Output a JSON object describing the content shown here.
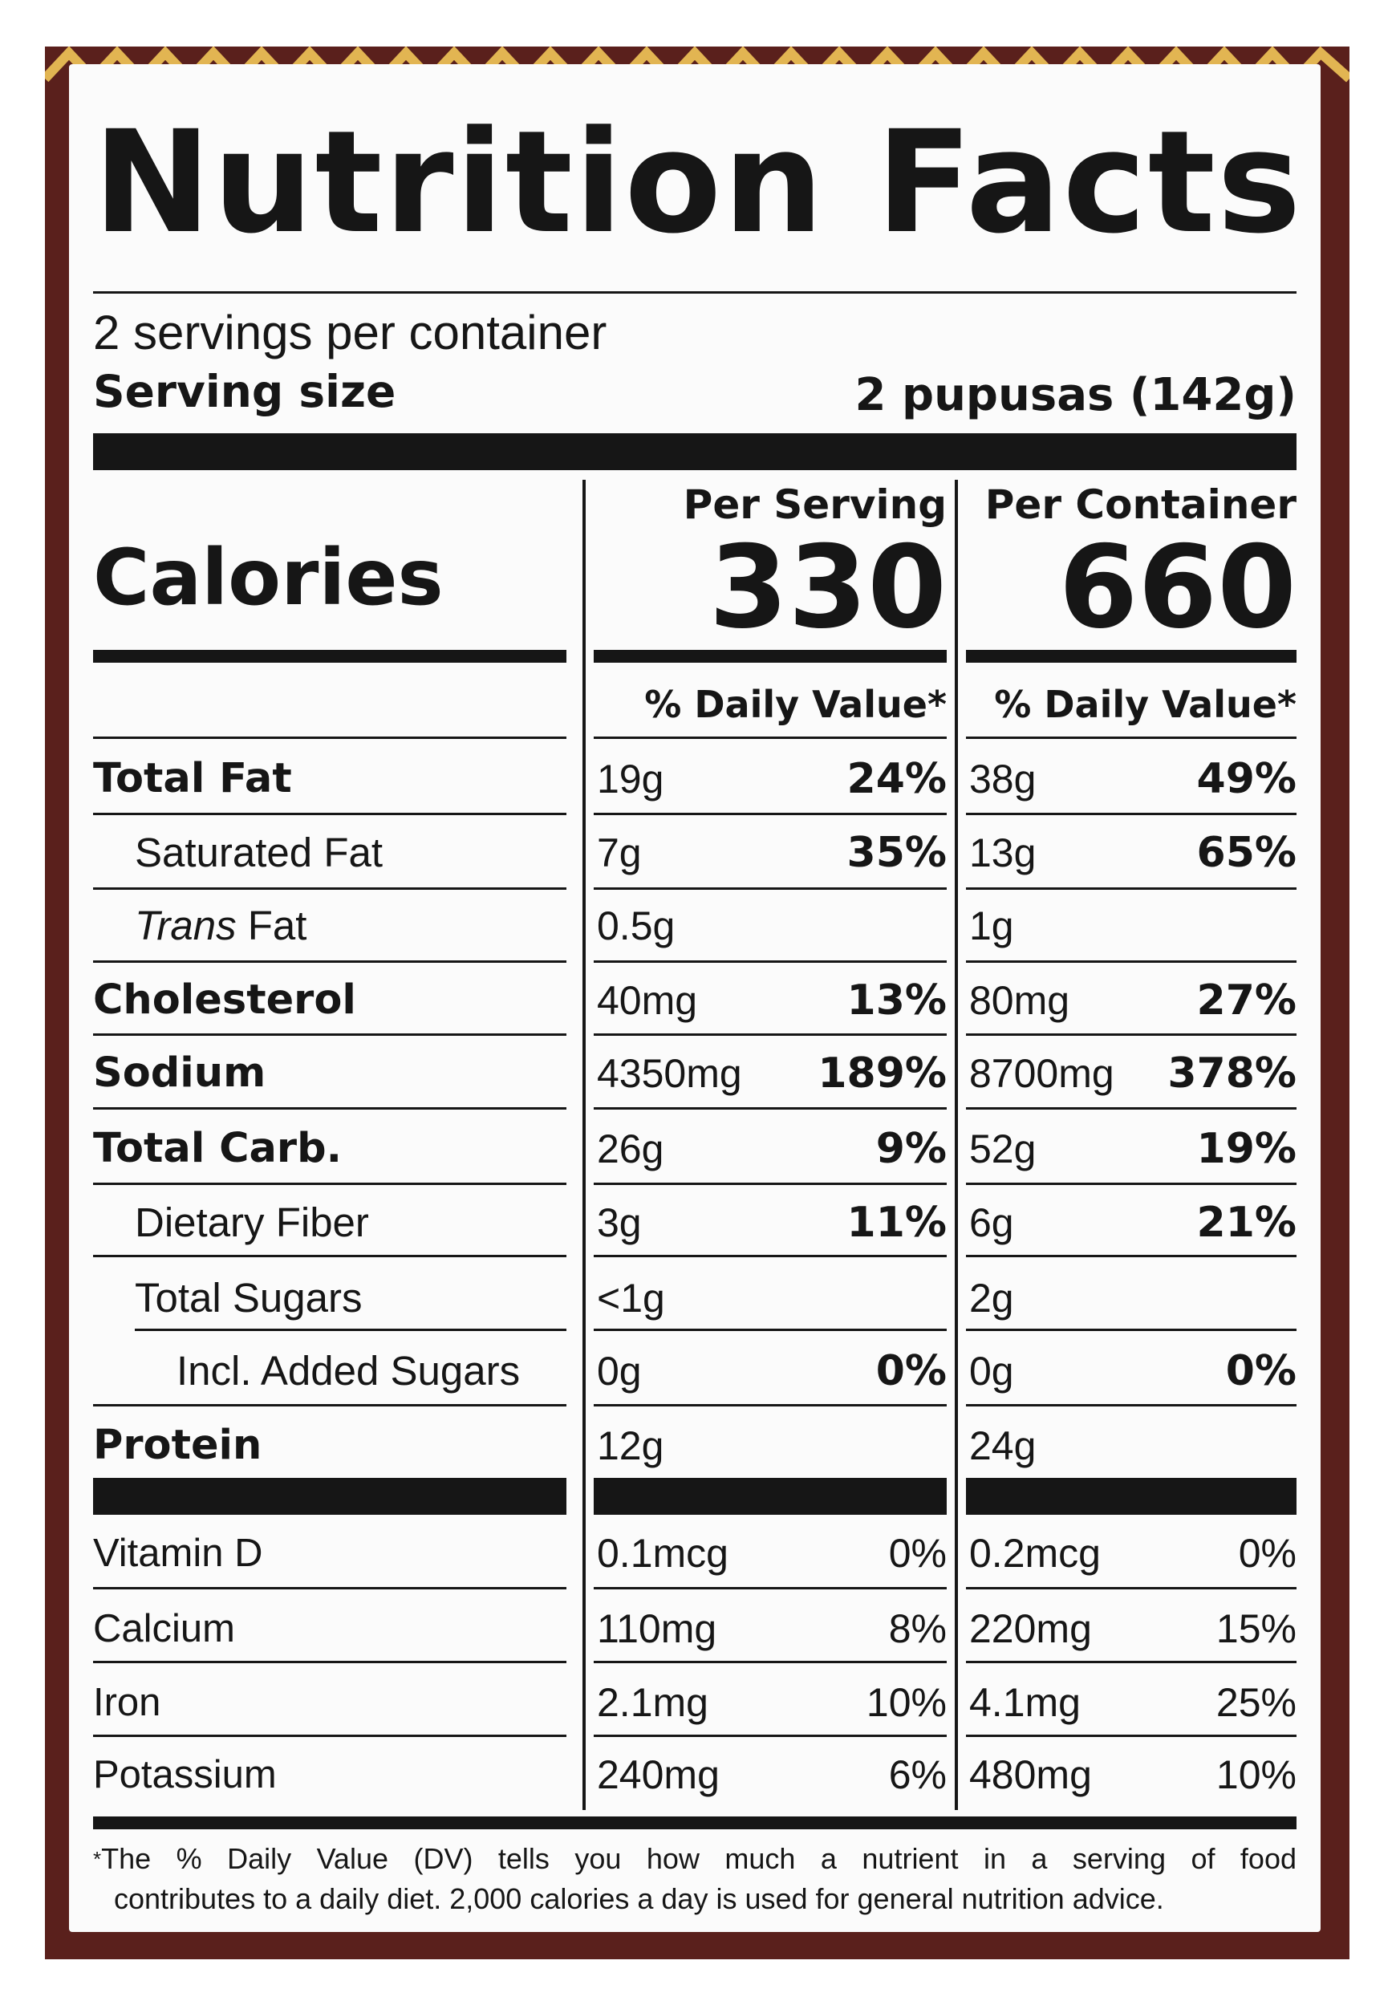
{
  "label": {
    "title": "Nutrition Facts",
    "servings_per_container": "2 servings per container",
    "serving_size_label": "Serving size",
    "serving_size_value": "2 pupusas (142g)",
    "calories_label": "Calories",
    "columns": {
      "per_serving": {
        "header": "Per Serving",
        "calories": "330",
        "dv_header": "% Daily Value*"
      },
      "per_container": {
        "header": "Per Container",
        "calories": "660",
        "dv_header": "% Daily Value*"
      }
    },
    "nutrients": [
      {
        "name": "Total Fat",
        "serving_amount": "19g",
        "serving_dv": "24%",
        "container_amount": "38g",
        "container_dv": "49%"
      },
      {
        "name": "Saturated Fat",
        "serving_amount": "7g",
        "serving_dv": "35%",
        "container_amount": "13g",
        "container_dv": "65%"
      },
      {
        "name_italic": "Trans",
        "name_rest": " Fat",
        "serving_amount": "0.5g",
        "serving_dv": "",
        "container_amount": "1g",
        "container_dv": ""
      },
      {
        "name": "Cholesterol",
        "serving_amount": "40mg",
        "serving_dv": "13%",
        "container_amount": "80mg",
        "container_dv": "27%"
      },
      {
        "name": "Sodium",
        "serving_amount": "4350mg",
        "serving_dv": "189%",
        "container_amount": "8700mg",
        "container_dv": "378%"
      },
      {
        "name": "Total Carb.",
        "serving_amount": "26g",
        "serving_dv": "9%",
        "container_amount": "52g",
        "container_dv": "19%"
      },
      {
        "name": "Dietary Fiber",
        "serving_amount": "3g",
        "serving_dv": "11%",
        "container_amount": "6g",
        "container_dv": "21%"
      },
      {
        "name": "Total Sugars",
        "serving_amount": "<1g",
        "serving_dv": "",
        "container_amount": "2g",
        "container_dv": ""
      },
      {
        "name": "Incl. Added Sugars",
        "serving_amount": "0g",
        "serving_dv": "0%",
        "container_amount": "0g",
        "container_dv": "0%"
      },
      {
        "name": "Protein",
        "serving_amount": "12g",
        "serving_dv": "",
        "container_amount": "24g",
        "container_dv": ""
      }
    ],
    "micronutrients": [
      {
        "name": "Vitamin D",
        "serving_amount": "0.1mcg",
        "serving_dv": "0%",
        "container_amount": "0.2mcg",
        "container_dv": "0%"
      },
      {
        "name": "Calcium",
        "serving_amount": "110mg",
        "serving_dv": "8%",
        "container_amount": "220mg",
        "container_dv": "15%"
      },
      {
        "name": "Iron",
        "serving_amount": "2.1mg",
        "serving_dv": "10%",
        "container_amount": "4.1mg",
        "container_dv": "25%"
      },
      {
        "name": "Potassium",
        "serving_amount": "240mg",
        "serving_dv": "6%",
        "container_amount": "480mg",
        "container_dv": "10%"
      }
    ],
    "footnote_line1": "The % Daily Value (DV) tells you how much a nutrient in a serving of food",
    "footnote_line2": "contributes to a daily diet. 2,000 calories a day is used for general nutrition advice."
  },
  "colors": {
    "package_background": "#5a201c",
    "pattern_accent": "#e2b552",
    "label_background": "#fbfbfb",
    "ink": "#161616"
  }
}
